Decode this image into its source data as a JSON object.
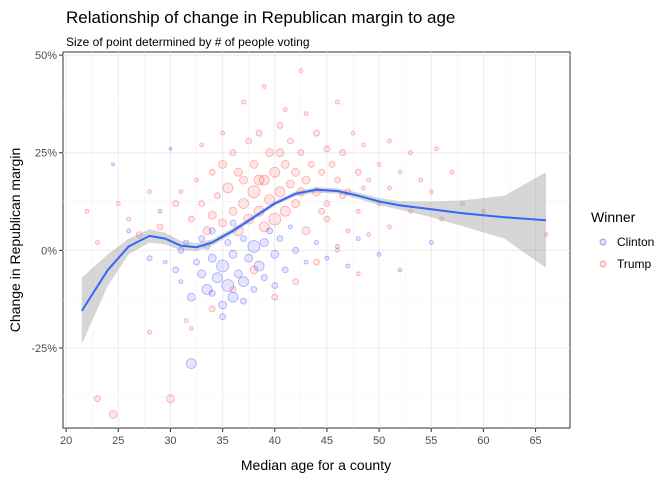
{
  "chart_data": {
    "type": "scatter",
    "title": "Relationship of change in Republican margin to age",
    "subtitle": "Size of point determined by # of people voting",
    "xlabel": "Median age for a county",
    "ylabel": "Change in Republican margin",
    "xlim": [
      19.7,
      68.3
    ],
    "ylim": [
      -0.455,
      0.508
    ],
    "x_ticks": [
      20,
      25,
      30,
      35,
      40,
      45,
      50,
      55,
      60,
      65
    ],
    "y_ticks": [
      -0.25,
      0,
      0.25,
      0.5
    ],
    "y_tick_labels": [
      "-25%",
      "0%",
      "25%",
      "50%"
    ],
    "grid": true,
    "legend": {
      "title": "Winner",
      "position": "right",
      "entries": [
        {
          "label": "Clinton",
          "color": "#0000ff"
        },
        {
          "label": "Trump",
          "color": "#ff0000"
        }
      ]
    },
    "smooth": {
      "color": "#3366ff",
      "band_color": "#999999",
      "x": [
        21.5,
        24,
        26,
        28,
        29.5,
        31,
        32.5,
        34,
        36,
        38,
        40,
        42,
        44,
        46,
        48,
        50,
        52,
        55,
        58,
        62,
        66
      ],
      "y": [
        -0.155,
        -0.05,
        0.01,
        0.037,
        0.03,
        0.012,
        0.008,
        0.02,
        0.05,
        0.085,
        0.12,
        0.145,
        0.155,
        0.152,
        0.14,
        0.125,
        0.115,
        0.105,
        0.095,
        0.085,
        0.077
      ],
      "lower": [
        -0.24,
        -0.09,
        -0.01,
        0.02,
        0.015,
        0.0,
        -0.002,
        0.012,
        0.043,
        0.079,
        0.114,
        0.139,
        0.148,
        0.145,
        0.132,
        0.116,
        0.104,
        0.085,
        0.062,
        0.03,
        -0.045
      ],
      "upper": [
        -0.07,
        -0.01,
        0.03,
        0.054,
        0.045,
        0.024,
        0.018,
        0.028,
        0.057,
        0.091,
        0.126,
        0.151,
        0.162,
        0.159,
        0.148,
        0.134,
        0.126,
        0.125,
        0.128,
        0.14,
        0.2
      ]
    },
    "series": [
      {
        "name": "Clinton",
        "color": "#0000ff",
        "points": [
          [
            24.5,
            0.22,
            1.5
          ],
          [
            26,
            0.05,
            2
          ],
          [
            28,
            -0.02,
            2.5
          ],
          [
            29,
            0.1,
            2
          ],
          [
            30,
            0.26,
            1.5
          ],
          [
            30.5,
            -0.05,
            3
          ],
          [
            31,
            -0.08,
            2
          ],
          [
            31.5,
            0.02,
            2.5
          ],
          [
            32,
            -0.12,
            4
          ],
          [
            32,
            -0.29,
            5
          ],
          [
            32.5,
            -0.03,
            3
          ],
          [
            33,
            -0.06,
            4
          ],
          [
            33.5,
            -0.1,
            5
          ],
          [
            33.5,
            0.01,
            3
          ],
          [
            34,
            -0.02,
            4
          ],
          [
            34,
            -0.11,
            3
          ],
          [
            34.5,
            -0.07,
            5
          ],
          [
            35,
            -0.04,
            6
          ],
          [
            35,
            -0.14,
            4
          ],
          [
            35.5,
            0.02,
            3
          ],
          [
            35.5,
            -0.09,
            6
          ],
          [
            36,
            -0.01,
            4
          ],
          [
            36,
            -0.12,
            5
          ],
          [
            36.5,
            -0.06,
            4
          ],
          [
            37,
            0.03,
            3
          ],
          [
            37,
            -0.08,
            5
          ],
          [
            37.5,
            -0.02,
            4
          ],
          [
            38,
            0.01,
            6
          ],
          [
            38,
            -0.1,
            3
          ],
          [
            38.5,
            -0.04,
            5
          ],
          [
            39,
            0.02,
            4
          ],
          [
            39,
            -0.07,
            3
          ],
          [
            39.5,
            0.05,
            3
          ],
          [
            40,
            -0.01,
            4
          ],
          [
            40.5,
            0.03,
            3
          ],
          [
            41,
            -0.05,
            3
          ],
          [
            41.5,
            0.06,
            2
          ],
          [
            42,
            0.0,
            3
          ],
          [
            43,
            -0.03,
            2
          ],
          [
            44,
            0.02,
            2
          ],
          [
            45,
            -0.02,
            2
          ],
          [
            46,
            0.01,
            2
          ],
          [
            47,
            -0.04,
            2
          ],
          [
            48,
            0.03,
            2
          ],
          [
            50,
            -0.01,
            2
          ],
          [
            52,
            -0.05,
            2
          ],
          [
            55,
            0.02,
            2
          ],
          [
            34,
            0.05,
            3
          ],
          [
            36,
            0.07,
            3
          ],
          [
            33,
            0.03,
            3
          ],
          [
            37,
            -0.13,
            3
          ],
          [
            40,
            -0.09,
            3
          ],
          [
            35,
            -0.17,
            3
          ],
          [
            31,
            0.0,
            3
          ],
          [
            29.5,
            -0.03,
            2
          ]
        ]
      },
      {
        "name": "Trump",
        "color": "#ff0000",
        "points": [
          [
            22,
            0.1,
            2
          ],
          [
            23,
            0.02,
            2
          ],
          [
            23,
            -0.38,
            3
          ],
          [
            24.5,
            -0.42,
            4
          ],
          [
            25,
            0.12,
            2
          ],
          [
            26,
            0.08,
            2
          ],
          [
            27,
            0.04,
            3
          ],
          [
            28,
            -0.21,
            2
          ],
          [
            28,
            0.15,
            2
          ],
          [
            29,
            0.06,
            3
          ],
          [
            30,
            -0.38,
            4
          ],
          [
            30.5,
            0.12,
            3
          ],
          [
            31,
            0.15,
            2
          ],
          [
            31.5,
            -0.18,
            2
          ],
          [
            32,
            0.08,
            3
          ],
          [
            32.5,
            0.18,
            2
          ],
          [
            33,
            0.12,
            3
          ],
          [
            33.5,
            0.05,
            4
          ],
          [
            34,
            0.2,
            3
          ],
          [
            34,
            0.09,
            4
          ],
          [
            34.5,
            0.14,
            3
          ],
          [
            35,
            0.22,
            4
          ],
          [
            35,
            0.07,
            4
          ],
          [
            35.5,
            0.16,
            5
          ],
          [
            36,
            0.1,
            4
          ],
          [
            36,
            0.25,
            3
          ],
          [
            36.5,
            0.05,
            5
          ],
          [
            37,
            0.18,
            4
          ],
          [
            37,
            0.12,
            5
          ],
          [
            37.5,
            0.28,
            3
          ],
          [
            37.5,
            0.08,
            5
          ],
          [
            38,
            0.15,
            6
          ],
          [
            38,
            0.22,
            4
          ],
          [
            38.5,
            0.1,
            5
          ],
          [
            38.5,
            0.3,
            3
          ],
          [
            39,
            0.18,
            5
          ],
          [
            39,
            0.06,
            5
          ],
          [
            39.5,
            0.25,
            4
          ],
          [
            39.5,
            0.13,
            5
          ],
          [
            40,
            0.2,
            5
          ],
          [
            40,
            0.08,
            6
          ],
          [
            40.5,
            0.32,
            3
          ],
          [
            40.5,
            0.15,
            5
          ],
          [
            41,
            0.22,
            4
          ],
          [
            41,
            0.1,
            5
          ],
          [
            41.5,
            0.28,
            3
          ],
          [
            41.5,
            0.17,
            4
          ],
          [
            42,
            0.2,
            4
          ],
          [
            42,
            0.12,
            4
          ],
          [
            42.5,
            0.46,
            2
          ],
          [
            42.5,
            0.25,
            3
          ],
          [
            43,
            0.18,
            4
          ],
          [
            43,
            0.35,
            2
          ],
          [
            43.5,
            0.22,
            3
          ],
          [
            44,
            0.15,
            4
          ],
          [
            44,
            0.3,
            3
          ],
          [
            44.5,
            0.2,
            3
          ],
          [
            45,
            0.26,
            3
          ],
          [
            45,
            0.12,
            3
          ],
          [
            45.5,
            0.22,
            3
          ],
          [
            46,
            0.18,
            3
          ],
          [
            46,
            0.38,
            2
          ],
          [
            46.5,
            0.25,
            3
          ],
          [
            47,
            0.15,
            3
          ],
          [
            47.5,
            0.3,
            2
          ],
          [
            48,
            0.2,
            3
          ],
          [
            48,
            0.1,
            2
          ],
          [
            48.5,
            0.27,
            2
          ],
          [
            49,
            0.18,
            2
          ],
          [
            50,
            0.22,
            2
          ],
          [
            50,
            0.12,
            2
          ],
          [
            51,
            0.28,
            2
          ],
          [
            51,
            0.16,
            2
          ],
          [
            52,
            0.2,
            2
          ],
          [
            53,
            0.1,
            2
          ],
          [
            53,
            0.25,
            2
          ],
          [
            54,
            0.18,
            2
          ],
          [
            55,
            0.15,
            2
          ],
          [
            55.5,
            0.26,
            2
          ],
          [
            56,
            0.08,
            2
          ],
          [
            57,
            0.2,
            2
          ],
          [
            58,
            0.12,
            2
          ],
          [
            60,
            0.1,
            2
          ],
          [
            66,
            0.04,
            2
          ],
          [
            36,
            -0.1,
            3
          ],
          [
            38,
            -0.05,
            4
          ],
          [
            40,
            -0.12,
            3
          ],
          [
            42,
            -0.08,
            3
          ],
          [
            44,
            -0.03,
            3
          ],
          [
            46,
            0.0,
            2
          ],
          [
            48,
            -0.06,
            2
          ],
          [
            34,
            -0.15,
            3
          ],
          [
            32,
            -0.2,
            2
          ],
          [
            37,
            0.38,
            2
          ],
          [
            39,
            0.42,
            2
          ],
          [
            41,
            0.36,
            2
          ],
          [
            35,
            0.3,
            2
          ],
          [
            33,
            0.27,
            2
          ],
          [
            43,
            0.05,
            4
          ],
          [
            45,
            0.08,
            3
          ],
          [
            47,
            0.05,
            2
          ],
          [
            49,
            0.04,
            2
          ],
          [
            51,
            0.06,
            2
          ],
          [
            36.5,
            0.2,
            4
          ],
          [
            38.5,
            0.18,
            5
          ],
          [
            40.5,
            0.25,
            4
          ],
          [
            42.5,
            0.15,
            4
          ],
          [
            44.5,
            0.1,
            3
          ],
          [
            46.5,
            0.14,
            3
          ],
          [
            48.5,
            0.16,
            2
          ]
        ]
      }
    ]
  }
}
